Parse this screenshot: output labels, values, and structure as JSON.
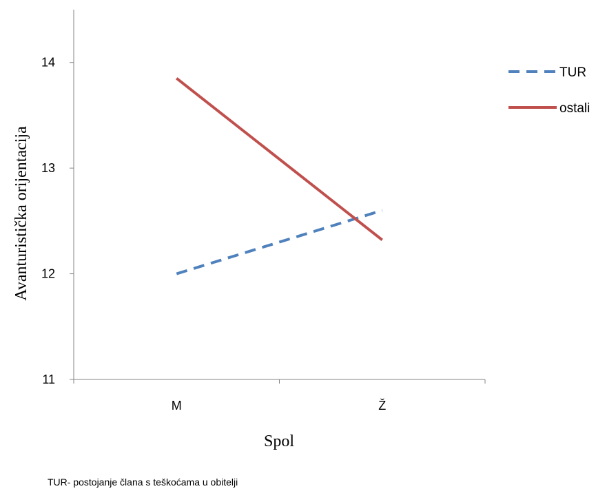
{
  "chart_data": {
    "type": "line",
    "title": "",
    "xlabel": "Spol",
    "ylabel": "Avanturistička orijentacija",
    "categories": [
      "M",
      "Ž"
    ],
    "ylim": [
      11,
      14.5
    ],
    "yticks": [
      11,
      12,
      13,
      14
    ],
    "series": [
      {
        "name": "TUR",
        "values": [
          12.0,
          12.6
        ],
        "color": "#4F81BD",
        "style": "dashed"
      },
      {
        "name": "ostali",
        "values": [
          13.85,
          12.32
        ],
        "color": "#C0504D",
        "style": "solid"
      }
    ],
    "grid": false,
    "legend_position": "right"
  },
  "note": "TUR- postojanje člana s teškoćama u obitelji"
}
